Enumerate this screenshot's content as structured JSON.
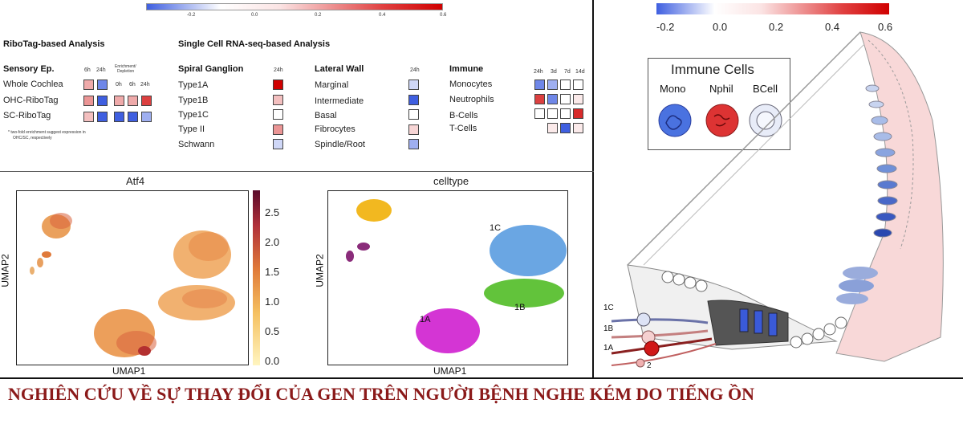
{
  "top_left": {
    "colorbar_ticks": [
      "-0.2",
      "0.0",
      "0.2",
      "0.4",
      "0.6"
    ],
    "ribotag_title": "RiboTag-based Analysis",
    "scrna_title": "Single Cell RNA-seq-based Analysis",
    "sensory": {
      "header": "Sensory Ep.",
      "col_6h": "6h",
      "col_24h": "24h",
      "enrich_label_line1": "Enrichment/",
      "enrich_label_line2": "Depletion",
      "sub_0h": "0h",
      "sub_6h": "6h",
      "sub_24h": "24h",
      "rows": [
        "Whole Cochlea",
        "OHC-RiboTag",
        "SC-RiboTag"
      ],
      "footnote_line1": "* two-fold enrichment suggest expression in",
      "footnote_line2": "OHC/SC, respectively"
    },
    "spiral": {
      "header": "Spiral Ganglion",
      "col": "24h",
      "rows": [
        "Type1A",
        "Type1B",
        "Type1C",
        "Type II",
        "Schwann"
      ]
    },
    "lateral": {
      "header": "Lateral Wall",
      "col": "24h",
      "rows": [
        "Marginal",
        "Intermediate",
        "Basal",
        "Fibrocytes",
        "Spindle/Root"
      ]
    },
    "immune": {
      "header": "Immune",
      "cols": [
        "24h",
        "3d",
        "7d",
        "14d"
      ],
      "rows": [
        "Monocytes",
        "Neutrophils",
        "B-Cells",
        "T-Cells"
      ]
    }
  },
  "umap_left": {
    "title": "Atf4",
    "xlabel": "UMAP1",
    "ylabel": "UMAP2",
    "cbar_ticks": [
      "2.5",
      "2.0",
      "1.5",
      "1.0",
      "0.5",
      "0.0"
    ]
  },
  "umap_right": {
    "title": "celltype",
    "xlabel": "UMAP1",
    "ylabel": "UMAP2",
    "labels": {
      "c1": "1C",
      "b1": "1B",
      "a1": "1A"
    }
  },
  "right_panel": {
    "colorbar_ticks": [
      "-0.2",
      "0.0",
      "0.2",
      "0.4",
      "0.6"
    ],
    "legend_title": "Immune Cells",
    "legend_items": [
      "Mono",
      "Nphil",
      "BCell"
    ],
    "neuron_labels": [
      "1C",
      "1B",
      "1A",
      "2"
    ]
  },
  "footer": {
    "title": "NGHIÊN CỨU VỀ SỰ THAY ĐỔI CỦA GEN TRÊN NGƯỜI BỆNH NGHE KÉM DO TIẾNG ỒN"
  },
  "colors": {
    "red": "#d62728",
    "blue": "#4a63d6",
    "pale": "#f6dede",
    "footer_text": "#8b1a1a"
  },
  "chart_data": [
    {
      "type": "heatmap",
      "title": "",
      "colorscale": {
        "min": -0.2,
        "max": 0.6
      },
      "tables": [
        {
          "name": "Sensory Ep.",
          "cols": [
            "6h",
            "24h"
          ],
          "rows": [
            "Whole Cochlea",
            "OHC-RiboTag",
            "SC-RiboTag"
          ],
          "values": [
            [
              0.2,
              -0.15
            ],
            [
              0.25,
              -0.2
            ],
            [
              0.15,
              -0.2
            ]
          ]
        },
        {
          "name": "Enrichment/Depletion",
          "cols": [
            "0h",
            "6h",
            "24h"
          ],
          "rows": [
            "OHC-RiboTag",
            "SC-RiboTag"
          ],
          "values": [
            [
              0.2,
              0.2,
              0.45
            ],
            [
              -0.25,
              -0.3,
              -0.1
            ]
          ]
        },
        {
          "name": "Spiral Ganglion",
          "cols": [
            "24h"
          ],
          "rows": [
            "Type1A",
            "Type1B",
            "Type1C",
            "Type II",
            "Schwann"
          ],
          "values": [
            [
              0.6
            ],
            [
              0.15
            ],
            [
              0.0
            ],
            [
              0.25
            ],
            [
              -0.05
            ]
          ]
        },
        {
          "name": "Lateral Wall",
          "cols": [
            "24h"
          ],
          "rows": [
            "Marginal",
            "Intermediate",
            "Basal",
            "Fibrocytes",
            "Spindle/Root"
          ],
          "values": [
            [
              -0.05
            ],
            [
              -0.2
            ],
            [
              0.0
            ],
            [
              0.1
            ],
            [
              -0.1
            ]
          ]
        },
        {
          "name": "Immune",
          "cols": [
            "24h",
            "3d",
            "7d",
            "14d"
          ],
          "rows": [
            "Monocytes",
            "Neutrophils",
            "B-Cells",
            "T-Cells"
          ],
          "values": [
            [
              -0.15,
              -0.1,
              0.0,
              0.0
            ],
            [
              0.45,
              -0.15,
              0.0,
              0.05
            ],
            [
              0.0,
              0.0,
              0.0,
              0.5
            ],
            [
              null,
              0.05,
              -0.2,
              0.05
            ]
          ]
        }
      ]
    },
    {
      "type": "scatter",
      "title": "Atf4",
      "xlabel": "UMAP1",
      "ylabel": "UMAP2",
      "colorbar": {
        "min": 0.0,
        "max": 2.9,
        "ticks": [
          0.0,
          0.5,
          1.0,
          1.5,
          2.0,
          2.5
        ]
      }
    },
    {
      "type": "scatter",
      "title": "celltype",
      "xlabel": "UMAP1",
      "ylabel": "UMAP2",
      "groups": [
        "1C",
        "1B",
        "1A"
      ]
    }
  ]
}
